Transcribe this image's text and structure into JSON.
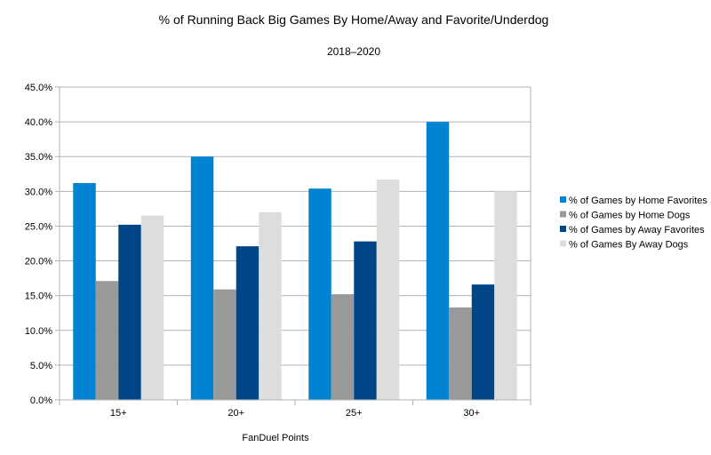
{
  "chart_data": {
    "type": "bar",
    "title": "% of Running Back Big Games By Home/Away and Favorite/Underdog",
    "subtitle": "2018–2020",
    "xlabel": "FanDuel Points",
    "ylabel": "",
    "ylim": [
      0,
      45
    ],
    "yticks": [
      0,
      5,
      10,
      15,
      20,
      25,
      30,
      35,
      40,
      45
    ],
    "ytick_labels": [
      "0.0%",
      "5.0%",
      "10.0%",
      "15.0%",
      "20.0%",
      "25.0%",
      "30.0%",
      "35.0%",
      "40.0%",
      "45.0%"
    ],
    "grid": true,
    "legend_position": "right",
    "categories": [
      "15+",
      "20+",
      "25+",
      "30+"
    ],
    "series": [
      {
        "name": "% of Games by Home Favorites",
        "color": "#0084d1",
        "values": [
          31.2,
          35.0,
          30.4,
          40.0
        ]
      },
      {
        "name": "% of Games by Home Dogs",
        "color": "#999999",
        "values": [
          17.1,
          15.9,
          15.2,
          13.3
        ]
      },
      {
        "name": "% of Games by Away Favorites",
        "color": "#004586",
        "values": [
          25.2,
          22.1,
          22.8,
          16.6
        ]
      },
      {
        "name": "% of Games By Away Dogs",
        "color": "#dddddd",
        "values": [
          26.5,
          27.0,
          31.7,
          30.0
        ]
      }
    ]
  }
}
